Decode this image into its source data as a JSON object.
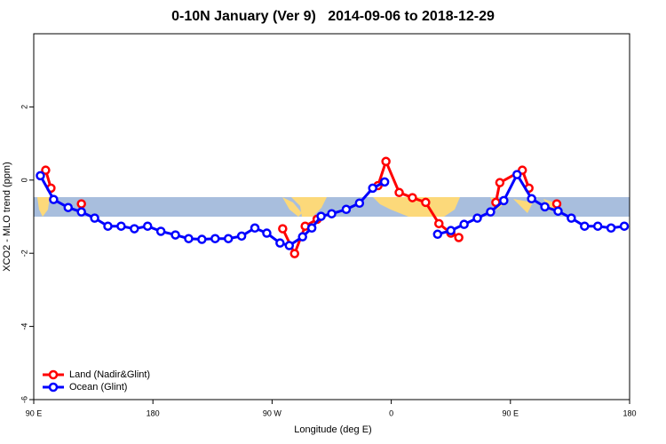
{
  "chart_data": {
    "type": "line",
    "title": "0-10N January (Ver 9)   2014-09-06 to 2018-12-29",
    "x_label": "Longitude (deg E)",
    "y_label": "XCO2 - MLO trend (ppm)",
    "xlim": [
      90,
      540
    ],
    "xticks": [
      {
        "value": 90,
        "label": "90 E"
      },
      180,
      {
        "value": 270,
        "label": "90 W"
      },
      {
        "value": 360,
        "label": "0"
      },
      {
        "value": 450,
        "label": "90 E"
      },
      {
        "value": 540,
        "label": "180"
      }
    ],
    "ylim": [
      -6,
      4
    ],
    "yticks": [
      -6,
      -4,
      -2,
      0,
      2
    ],
    "legend": "bottom-left",
    "series": [
      {
        "name": "Land (Nadir&Glint)",
        "color": "#ff0000",
        "x": [
          99,
          103,
          null,
          126,
          null,
          278,
          287,
          295,
          304,
          null,
          350,
          356,
          366,
          376,
          386,
          396,
          405,
          411,
          null,
          439,
          442,
          459,
          464,
          null,
          485
        ],
        "values": [
          0.27,
          -0.22,
          null,
          -0.65,
          null,
          -1.33,
          -2.01,
          -1.26,
          -1.07,
          null,
          -0.15,
          0.51,
          -0.34,
          -0.48,
          -0.61,
          -1.19,
          -1.45,
          -1.57,
          null,
          -0.61,
          -0.07,
          0.27,
          -0.22,
          null,
          -0.65
        ]
      },
      {
        "name": "Ocean (Glint)",
        "color": "#0000ff",
        "x": [
          95,
          105,
          116,
          126,
          136,
          146,
          156,
          166,
          176,
          186,
          197,
          207,
          217,
          227,
          237,
          247,
          257,
          266,
          276,
          283,
          293,
          300,
          307,
          315,
          326,
          336,
          346,
          355,
          null,
          395,
          405,
          415,
          425,
          435,
          445,
          455,
          466,
          476,
          486,
          496,
          506,
          516,
          526,
          536
        ],
        "values": [
          0.12,
          -0.53,
          -0.75,
          -0.87,
          -1.04,
          -1.26,
          -1.26,
          -1.33,
          -1.26,
          -1.4,
          -1.5,
          -1.6,
          -1.62,
          -1.6,
          -1.6,
          -1.53,
          -1.31,
          -1.45,
          -1.72,
          -1.79,
          -1.55,
          -1.31,
          -0.99,
          -0.92,
          -0.8,
          -0.63,
          -0.22,
          -0.05,
          null,
          -1.48,
          -1.38,
          -1.21,
          -1.04,
          -0.87,
          -0.56,
          0.15,
          -0.51,
          -0.73,
          -0.85,
          -1.04,
          -1.26,
          -1.26,
          -1.31,
          -1.26
        ]
      }
    ]
  }
}
